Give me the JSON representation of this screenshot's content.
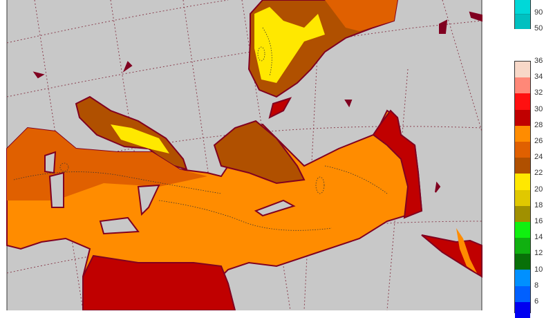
{
  "top_colorbar": {
    "labels": [
      "90",
      "50"
    ],
    "colors": [
      "#00d8d8",
      "#00c0c0"
    ]
  },
  "colorbar": {
    "labels": [
      "36",
      "34",
      "32",
      "30",
      "28",
      "26",
      "24",
      "22",
      "20",
      "18",
      "16",
      "14",
      "12",
      "10",
      "8",
      "6"
    ],
    "colors": [
      "#f8d8c8",
      "#ff8878",
      "#ff1010",
      "#c00000",
      "#ff8c00",
      "#e06000",
      "#b05000",
      "#ffe800",
      "#e0c800",
      "#a09000",
      "#10f010",
      "#10b010",
      "#087008",
      "#0090ff",
      "#0060ff",
      "#0000f0"
    ]
  },
  "map": {
    "sea_color": "#c8c8c8",
    "coast_color": "#800020",
    "grid_color": "#8a4050"
  }
}
